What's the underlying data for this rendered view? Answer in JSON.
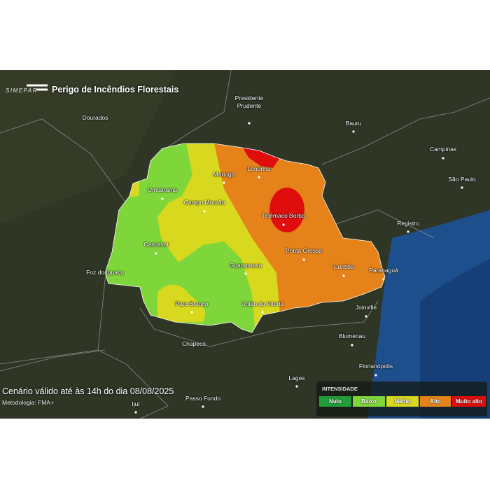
{
  "header": {
    "logo": "SIMEPAR",
    "title": "Perigo de Incêndios Florestais"
  },
  "cities": [
    "Dourados",
    "Presidente Prudente",
    "Bauru",
    "Campinas",
    "São Paulo",
    "Registro",
    "Maringá",
    "Londrina",
    "Umuarama",
    "Campo Mourão",
    "Telêmaco Borba",
    "Cascavel",
    "Ponta Grossa",
    "Foz do Iguaçu",
    "Curitiba",
    "Paranaguá",
    "Guarapuava",
    "Pato Branco",
    "União da Vitória",
    "Joinville",
    "Blumenau",
    "Chapecó",
    "Florianópolis",
    "Lages",
    "Passo Fundo",
    "Ijuí"
  ],
  "footer": {
    "validity": "Cenário válido até às 14h do dia 08/08/2025",
    "methodology": "Metodologia: FMA+"
  },
  "legend": {
    "title": "INTENSIDADE",
    "items": [
      {
        "label": "Nulo",
        "color": "#1f9e3a"
      },
      {
        "label": "Baixo",
        "color": "#7fd63a"
      },
      {
        "label": "Médio",
        "color": "#d8d81e"
      },
      {
        "label": "Alto",
        "color": "#e5831a"
      },
      {
        "label": "Muito alto",
        "color": "#e00d0d"
      }
    ]
  }
}
